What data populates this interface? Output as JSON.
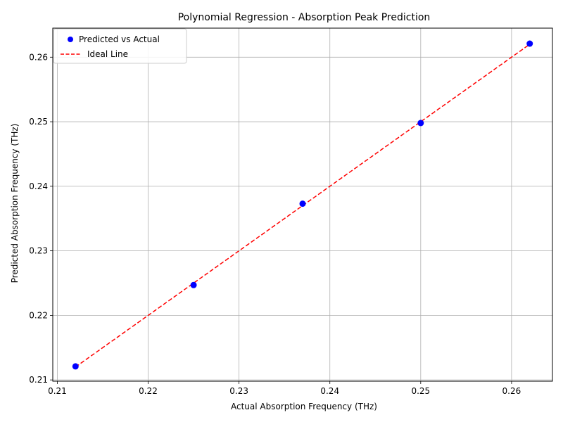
{
  "chart_data": {
    "type": "scatter",
    "title": "Polynomial Regression - Absorption Peak Prediction",
    "xlabel": "Actual Absorption Frequency (THz)",
    "ylabel": "Predicted Absorption Frequency (THz)",
    "xlim": [
      0.2095,
      0.2645
    ],
    "ylim": [
      0.2098,
      0.2645
    ],
    "x_ticks": [
      "0.21",
      "0.22",
      "0.23",
      "0.24",
      "0.25",
      "0.26"
    ],
    "y_ticks": [
      "0.21",
      "0.22",
      "0.23",
      "0.24",
      "0.25",
      "0.26"
    ],
    "grid": true,
    "legend_position": "upper-left",
    "series": [
      {
        "name": "Predicted vs Actual",
        "kind": "scatter",
        "color": "#0000ff",
        "x": [
          0.212,
          0.225,
          0.237,
          0.25,
          0.262
        ],
        "y": [
          0.2121,
          0.2247,
          0.2373,
          0.2498,
          0.2621
        ]
      },
      {
        "name": "Ideal Line",
        "kind": "line",
        "style": "dashed",
        "color": "#ff0000",
        "x": [
          0.212,
          0.262
        ],
        "y": [
          0.212,
          0.262
        ]
      }
    ]
  }
}
